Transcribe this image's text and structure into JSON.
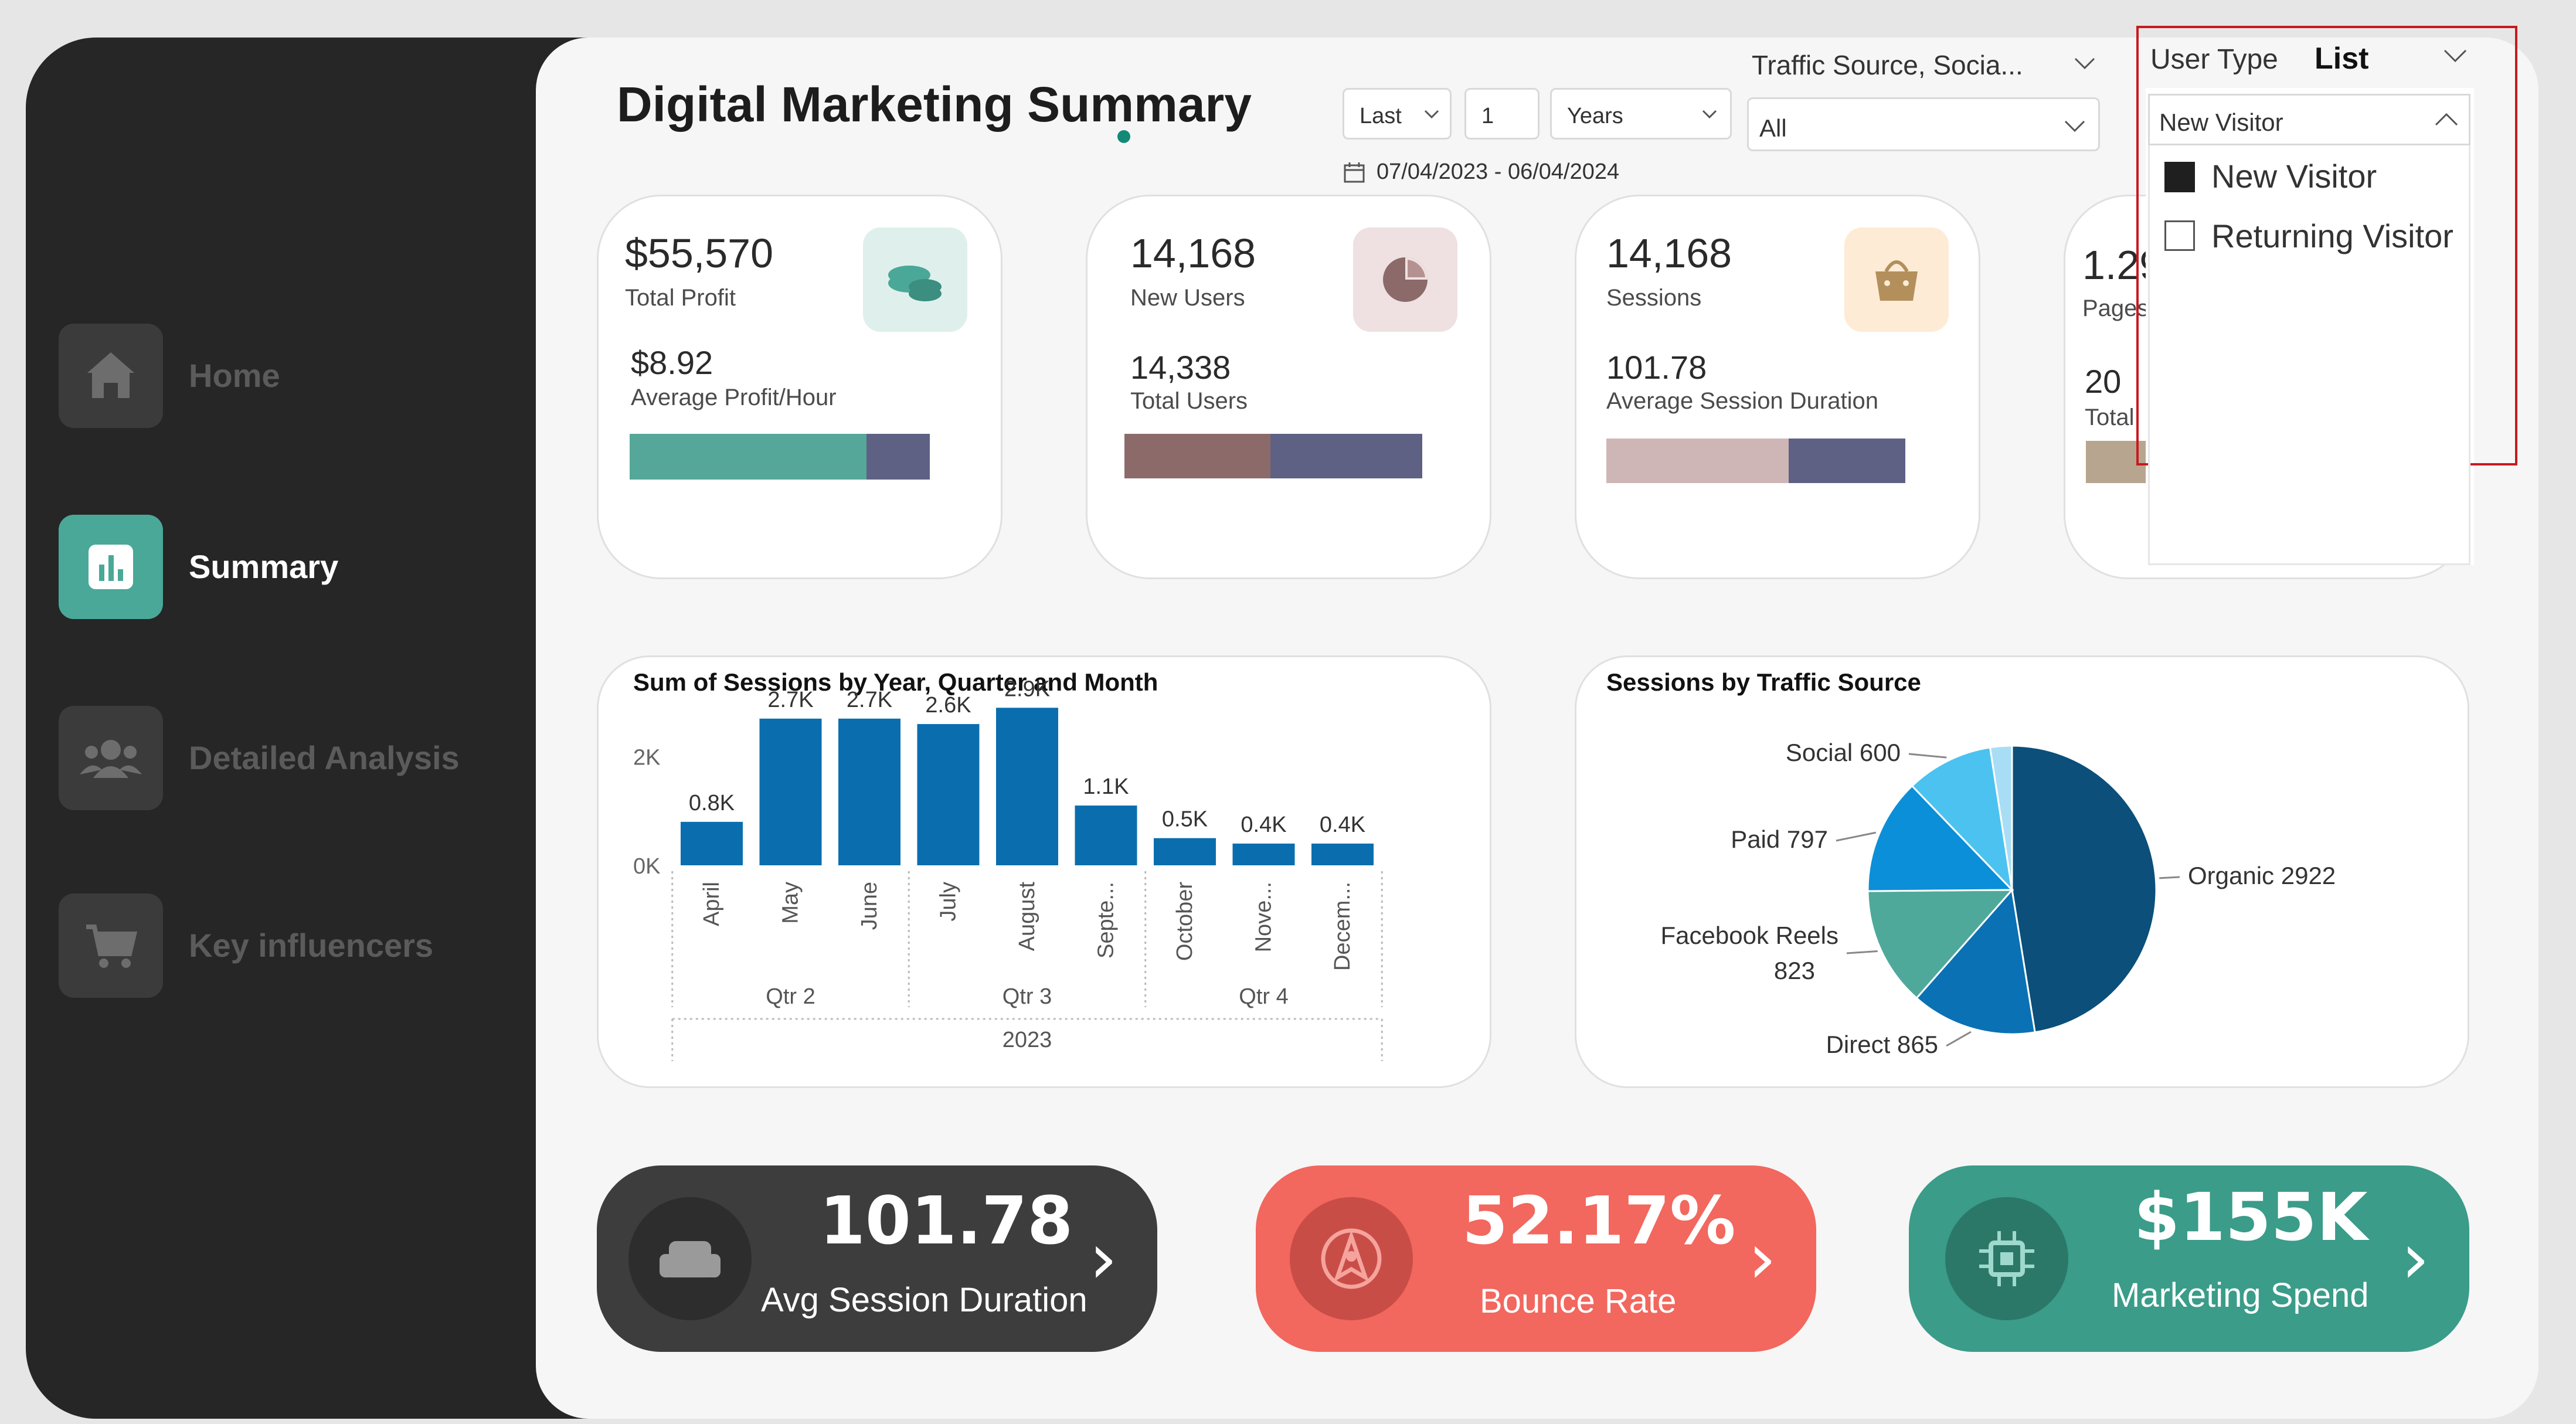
{
  "sidebar": {
    "items": [
      {
        "label": "Home",
        "icon": "home-icon",
        "active": false
      },
      {
        "label": "Summary",
        "icon": "bar-chart-icon",
        "active": true
      },
      {
        "label": "Detailed Analysis",
        "icon": "users-icon",
        "active": false
      },
      {
        "label": "Key influencers",
        "icon": "cart-icon",
        "active": false
      }
    ]
  },
  "header": {
    "title": "Digital Marketing Summary",
    "date_filter": {
      "mode": "Last",
      "count": "1",
      "unit": "Years",
      "range": "07/04/2023 - 06/04/2024"
    },
    "traffic_filter": {
      "label": "Traffic Source, Socia...",
      "value": "All"
    },
    "user_type": {
      "label": "User Type",
      "style": "List",
      "selected": "New Visitor",
      "options": [
        {
          "label": "New Visitor",
          "checked": true
        },
        {
          "label": "Returning Visitor",
          "checked": false
        }
      ]
    }
  },
  "cards": [
    {
      "value": "$55,570",
      "label": "Total Profit",
      "sub_value": "$8.92",
      "sub_label": "Average Profit/Hour",
      "icon": "coins-icon",
      "bar_fraction": 0.79,
      "colors": [
        "#55a899",
        "#5e6184"
      ]
    },
    {
      "value": "14,168",
      "label": "New Users",
      "sub_value": "14,338",
      "sub_label": "Total Users",
      "icon": "pie-icon",
      "bar_fraction": 0.49,
      "colors": [
        "#8c6a6a",
        "#5e6184"
      ]
    },
    {
      "value": "14,168",
      "label": "Sessions",
      "sub_value": "101.78",
      "sub_label": "Average Session Duration",
      "icon": "bag-icon",
      "bar_fraction": 0.61,
      "colors": [
        "#cfb6b6",
        "#5e6184"
      ]
    },
    {
      "value": "1.29",
      "label": "Pages",
      "sub_value": "20",
      "sub_label": "Total"
    }
  ],
  "charts": {
    "sessions_by_month": {
      "title": "Sum of Sessions by Year, Quarter and Month",
      "y_ticks": [
        "0K",
        "2K"
      ],
      "quarters": [
        "Qtr 2",
        "Qtr 3",
        "Qtr 4"
      ],
      "year": "2023"
    },
    "traffic_source": {
      "title": "Sessions by Traffic Source"
    }
  },
  "chart_data": [
    {
      "type": "bar",
      "title": "Sum of Sessions by Year, Quarter and Month",
      "categories": [
        "April",
        "May",
        "June",
        "July",
        "August",
        "Septe...",
        "October",
        "Nove...",
        "Decem..."
      ],
      "values": [
        800,
        2700,
        2700,
        2600,
        2900,
        1100,
        500,
        400,
        400
      ],
      "data_labels": [
        "0.8K",
        "2.7K",
        "2.7K",
        "2.6K",
        "2.9K",
        "1.1K",
        "0.5K",
        "0.4K",
        "0.4K"
      ],
      "ylim": [
        0,
        3000
      ],
      "color": "#0a6eae"
    },
    {
      "type": "pie",
      "title": "Sessions by Traffic Source",
      "slices": [
        {
          "name": "Organic",
          "value": 2922,
          "label": "Organic 2922",
          "color": "#0b4f7a"
        },
        {
          "name": "Direct",
          "value": 865,
          "label": "Direct 865",
          "color": "#0a71b4"
        },
        {
          "name": "Facebook Reels",
          "value": 823,
          "label": "Facebook Reels 823",
          "color": "#4fa99b"
        },
        {
          "name": "Paid",
          "value": 797,
          "label": "Paid 797",
          "color": "#0b8fd8"
        },
        {
          "name": "Social",
          "value": 600,
          "label": "Social 600",
          "color": "#4cc2f0"
        },
        {
          "name": "Other",
          "value": 150,
          "label": "",
          "color": "#a8def5"
        }
      ]
    }
  ],
  "kpis": [
    {
      "value": "101.78",
      "label": "Avg Session Duration",
      "icon": "sofa-icon",
      "color": "#3d3d3d",
      "circle": "#2d2d2d"
    },
    {
      "value": "52.17%",
      "label": "Bounce Rate",
      "icon": "compass-icon",
      "color": "#f2675e",
      "circle": "#c94d47"
    },
    {
      "value": "$155K",
      "label": "Marketing Spend",
      "icon": "chip-icon",
      "color": "#3a9c89",
      "circle": "#2b7869"
    }
  ]
}
